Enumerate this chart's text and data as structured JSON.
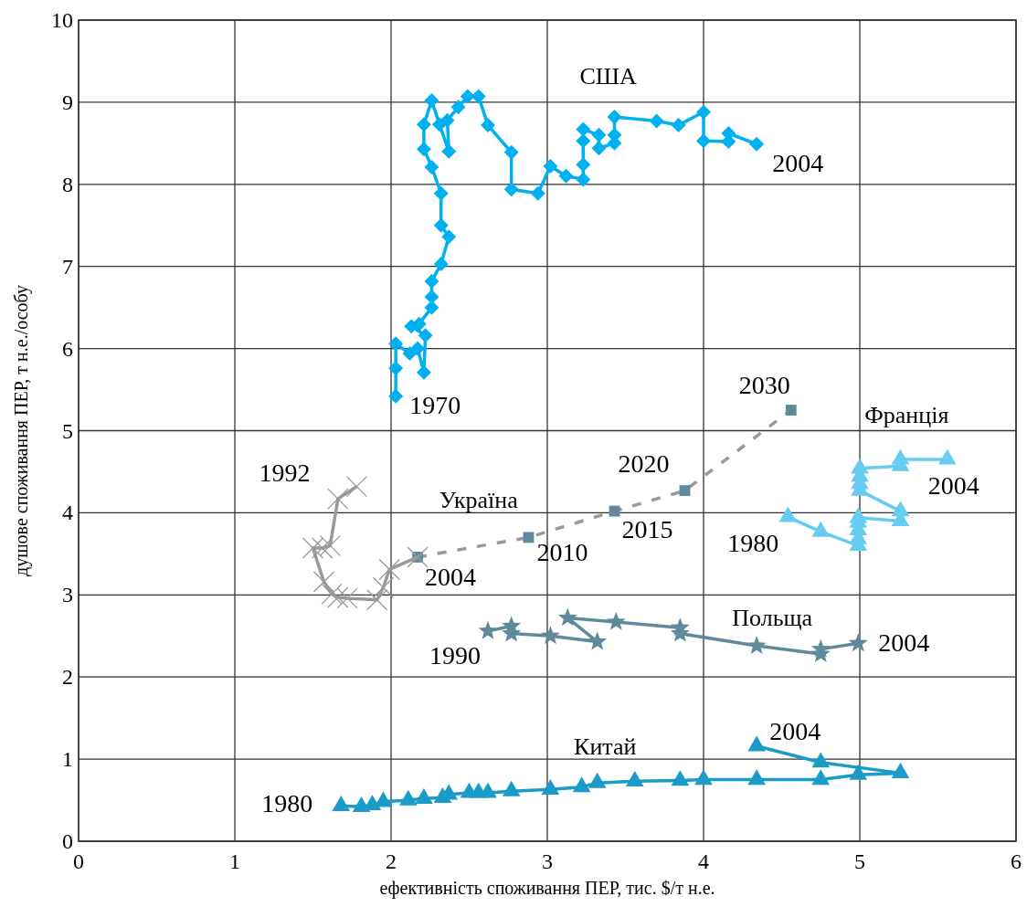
{
  "chart_data": {
    "type": "line",
    "xlabel": "ефективність споживання ПЕР, тис. $/т н.е.",
    "ylabel": "душове споживання ПЕР, т н.е./особу",
    "xlim": [
      0,
      6
    ],
    "xticks": [
      0,
      1,
      2,
      3,
      4,
      5,
      6
    ],
    "ylim": [
      0,
      10
    ],
    "yticks": [
      0,
      1,
      2,
      3,
      4,
      5,
      6,
      7,
      8,
      9,
      10
    ],
    "grid": true,
    "series": [
      {
        "name": "США",
        "color": "#00b0f0",
        "marker": "diamond",
        "line_style": "solid",
        "x": [
          2.03,
          2.03,
          2.03,
          2.12,
          2.17,
          2.21,
          2.22,
          2.13,
          2.18,
          2.26,
          2.26,
          2.26,
          2.32,
          2.37,
          2.32,
          2.32,
          2.26,
          2.21,
          2.21,
          2.26,
          2.31,
          2.37,
          2.36,
          2.43,
          2.49,
          2.56,
          2.62,
          2.77,
          2.77,
          2.94,
          3.02,
          3.12,
          3.23,
          3.23,
          3.23,
          3.23,
          3.33,
          3.33,
          3.43,
          3.43,
          3.43,
          3.7,
          3.84,
          4.0,
          4.0,
          4.16,
          4.16,
          4.34
        ],
        "values": [
          5.42,
          5.76,
          6.06,
          5.94,
          6.0,
          5.71,
          6.16,
          6.27,
          6.3,
          6.5,
          6.63,
          6.82,
          7.03,
          7.36,
          7.5,
          7.89,
          8.21,
          8.43,
          8.73,
          9.02,
          8.73,
          8.4,
          8.78,
          8.94,
          9.07,
          9.07,
          8.72,
          8.39,
          7.94,
          7.89,
          8.22,
          8.1,
          8.06,
          8.24,
          8.53,
          8.67,
          8.6,
          8.44,
          8.5,
          8.6,
          8.82,
          8.77,
          8.72,
          8.88,
          8.53,
          8.52,
          8.62,
          8.49
        ]
      },
      {
        "color": "#999999",
        "colors": [
          "#5f8a9c",
          "#5f8a9c",
          "#5f8a9c",
          "#5f8a9c",
          "#5f8a9c"
        ],
        "marker": "square",
        "line_style": "dashed",
        "x": [
          2.17,
          2.88,
          3.43,
          3.88,
          4.56
        ],
        "values": [
          3.46,
          3.7,
          4.02,
          4.27,
          5.25
        ]
      },
      {
        "name": "Україна",
        "color": "#999999",
        "marker": "cross",
        "line_style": "solid",
        "x": [
          1.78,
          1.66,
          1.61,
          1.56,
          1.5,
          1.57,
          1.62,
          1.66,
          1.72,
          1.91,
          1.95,
          1.99,
          2.17
        ],
        "values": [
          4.32,
          4.17,
          3.6,
          3.57,
          3.57,
          3.16,
          3.01,
          2.97,
          2.96,
          2.94,
          3.09,
          3.31,
          3.46
        ]
      },
      {
        "name": "Франція",
        "color": "#66ccf0",
        "marker": "triangle",
        "line_style": "solid",
        "x": [
          4.54,
          4.75,
          4.99,
          4.99,
          4.99,
          4.99,
          4.99,
          5.26,
          5.26,
          5.0,
          5.0,
          5.0,
          5.0,
          5.26,
          5.26,
          5.56
        ],
        "values": [
          3.95,
          3.77,
          3.6,
          3.68,
          3.79,
          3.88,
          3.94,
          3.9,
          4.02,
          4.27,
          4.35,
          4.44,
          4.54,
          4.57,
          4.65,
          4.65
        ]
      },
      {
        "name": "Польща",
        "color": "#5f8a9c",
        "marker": "star",
        "line_style": "solid",
        "x": [
          2.62,
          2.77,
          2.77,
          3.02,
          3.32,
          3.13,
          3.44,
          3.85,
          3.85,
          4.34,
          4.75,
          4.75,
          4.99
        ],
        "values": [
          2.56,
          2.62,
          2.53,
          2.5,
          2.43,
          2.72,
          2.67,
          2.6,
          2.53,
          2.38,
          2.28,
          2.34,
          2.41
        ]
      },
      {
        "name": "Китай",
        "color": "#1a9bc8",
        "marker": "triangle",
        "line_style": "solid",
        "x": [
          1.68,
          1.81,
          1.88,
          1.95,
          2.11,
          2.21,
          2.33,
          2.37,
          2.5,
          2.56,
          2.62,
          2.77,
          3.02,
          3.22,
          3.32,
          3.56,
          3.85,
          4.0,
          4.34,
          4.75,
          4.99,
          5.26,
          4.75,
          4.34
        ],
        "values": [
          0.43,
          0.42,
          0.44,
          0.48,
          0.5,
          0.52,
          0.53,
          0.57,
          0.59,
          0.59,
          0.59,
          0.61,
          0.63,
          0.66,
          0.71,
          0.73,
          0.74,
          0.75,
          0.75,
          0.75,
          0.81,
          0.83,
          0.96,
          1.16
        ]
      }
    ],
    "annotations": [
      {
        "text": "1970",
        "x": 2.03,
        "y": 5.42
      },
      {
        "text": "2004",
        "x": 4.34,
        "y": 8.49
      },
      {
        "text": "1992",
        "x": 1.78,
        "y": 4.32
      },
      {
        "text": "2004",
        "x": 2.17,
        "y": 3.46
      },
      {
        "text": "2010",
        "x": 2.88,
        "y": 3.7
      },
      {
        "text": "2015",
        "x": 3.43,
        "y": 4.02
      },
      {
        "text": "2020",
        "x": 3.88,
        "y": 4.27
      },
      {
        "text": "2030",
        "x": 4.56,
        "y": 5.25
      },
      {
        "text": "1980",
        "x": 4.54,
        "y": 3.95
      },
      {
        "text": "2004",
        "x": 5.56,
        "y": 4.65
      },
      {
        "text": "1990",
        "x": 2.62,
        "y": 2.56
      },
      {
        "text": "2004",
        "x": 4.99,
        "y": 2.41
      },
      {
        "text": "2004",
        "x": 4.34,
        "y": 1.16
      },
      {
        "text": "1980",
        "x": 1.68,
        "y": 0.43
      }
    ]
  }
}
